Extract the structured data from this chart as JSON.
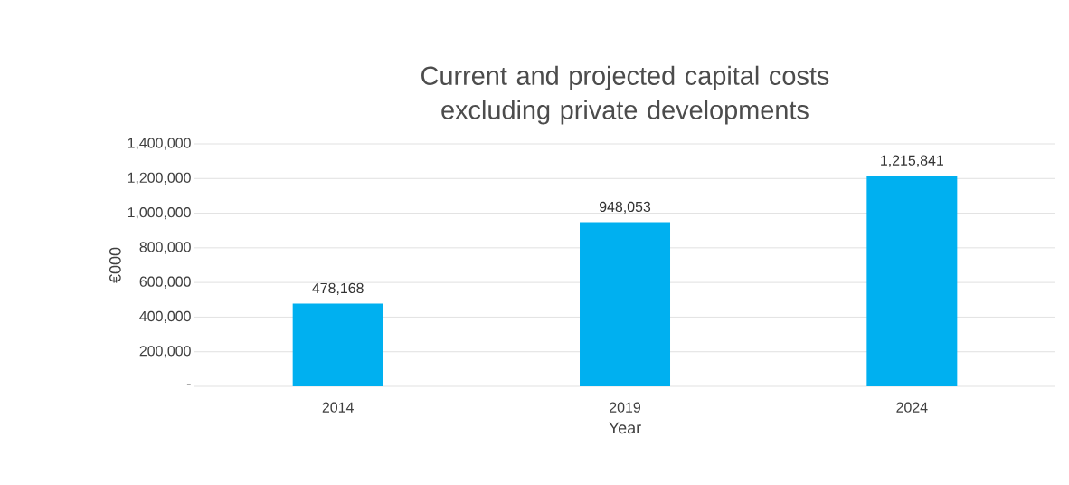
{
  "chart_data": {
    "type": "bar",
    "title": "Current and projected capital costs excluding private developments",
    "xlabel": "Year",
    "ylabel": "€000",
    "categories": [
      "2014",
      "2019",
      "2024"
    ],
    "values": [
      478168,
      948053,
      1215841
    ],
    "value_labels": [
      "478,168",
      "948,053",
      "1,215,841"
    ],
    "color": "#00b0f0",
    "ylim": [
      0,
      1400000
    ],
    "yticks": [
      {
        "value": 0,
        "label": "-"
      },
      {
        "value": 200000,
        "label": "200,000"
      },
      {
        "value": 400000,
        "label": "400,000"
      },
      {
        "value": 600000,
        "label": "600,000"
      },
      {
        "value": 800000,
        "label": "800,000"
      },
      {
        "value": 1000000,
        "label": "1,000,000"
      },
      {
        "value": 1200000,
        "label": "1,200,000"
      },
      {
        "value": 1400000,
        "label": "1,400,000"
      }
    ],
    "grid": "y"
  }
}
